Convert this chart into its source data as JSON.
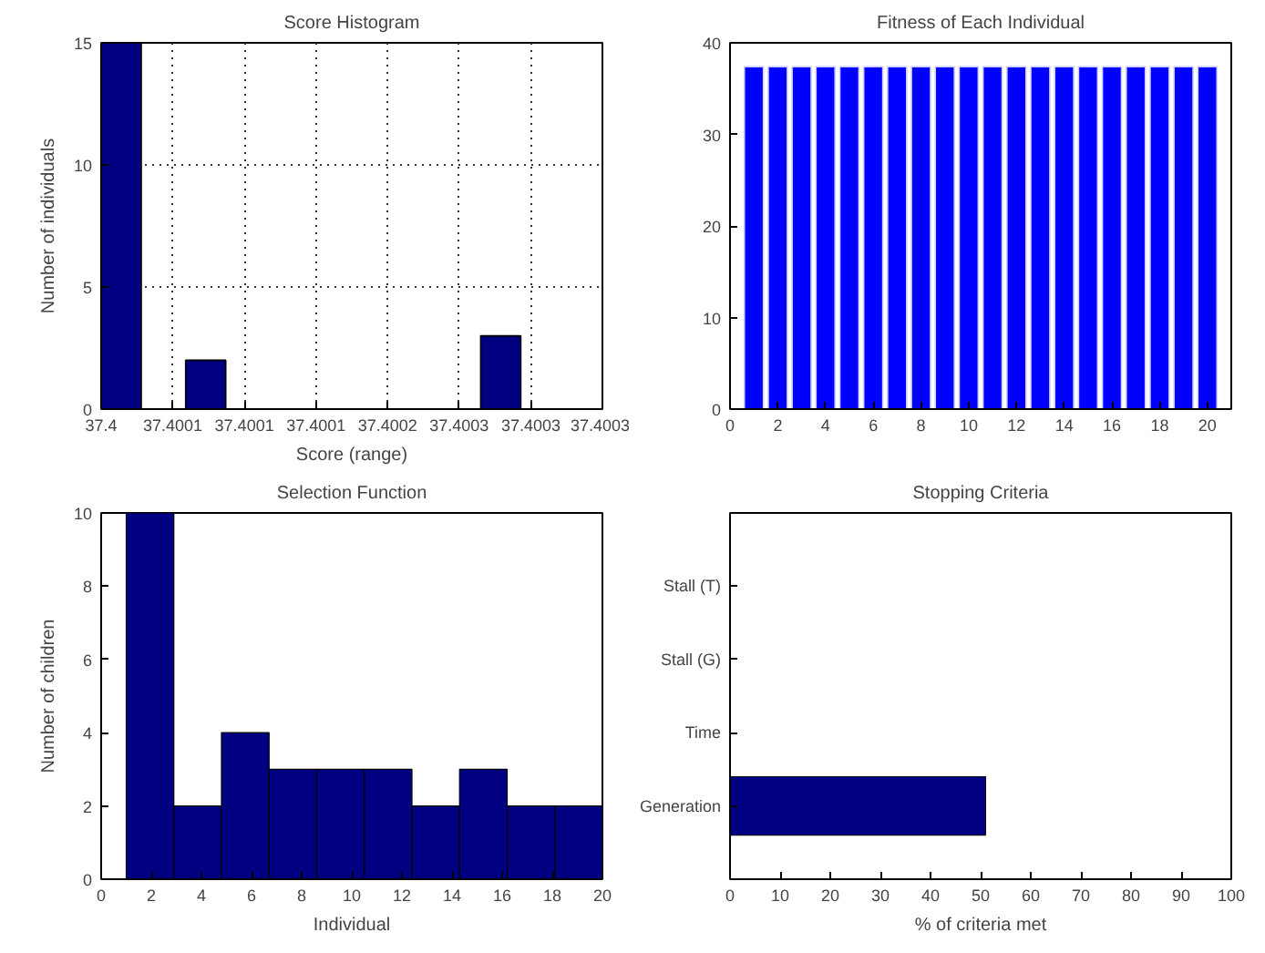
{
  "chart_data": [
    {
      "type": "bar",
      "title": "Score Histogram",
      "xlabel": "Score (range)",
      "ylabel": "Number of individuals",
      "x": [
        37.400014,
        37.400073,
        37.400279
      ],
      "values": [
        15,
        2,
        3
      ],
      "color": "#000080",
      "xlim": [
        37.4,
        37.40035
      ],
      "xticks": [
        37.4,
        {
          "value": 37.40005,
          "label": "37.4001"
        },
        {
          "value": 37.4001,
          "label": "37.4001"
        },
        {
          "value": 37.40015,
          "label": "37.4001"
        },
        {
          "value": 37.4002,
          "label": "37.4002"
        },
        {
          "value": 37.40025,
          "label": "37.4003"
        },
        {
          "value": 37.4003,
          "label": "37.4003"
        },
        {
          "value": 37.40035,
          "label": "37.4003"
        }
      ],
      "ylim": [
        0,
        15
      ],
      "yticks": [
        0,
        5,
        10,
        15
      ],
      "grid": true
    },
    {
      "type": "bar",
      "title": "Fitness of Each Individual",
      "x": [
        1,
        2,
        3,
        4,
        5,
        6,
        7,
        8,
        9,
        10,
        11,
        12,
        13,
        14,
        15,
        16,
        17,
        18,
        19,
        20
      ],
      "values": [
        37.4,
        37.4,
        37.4,
        37.4,
        37.4,
        37.4,
        37.4,
        37.4,
        37.4,
        37.4,
        37.4,
        37.4,
        37.4,
        37.4,
        37.4,
        37.4,
        37.4,
        37.4,
        37.4,
        37.4
      ],
      "color": "#0000ff",
      "xlim": [
        0,
        21
      ],
      "xticks": [
        0,
        2,
        4,
        6,
        8,
        10,
        12,
        14,
        16,
        18,
        20
      ],
      "ylim": [
        0,
        40
      ],
      "yticks": [
        0,
        10,
        20,
        30,
        40
      ]
    },
    {
      "type": "histogram",
      "title": "Selection Function",
      "xlabel": "Individual",
      "ylabel": "Number of children",
      "bins": [
        1,
        2.9,
        4.8,
        6.7,
        8.6,
        10.5,
        12.4,
        14.3,
        16.2,
        18.1,
        20
      ],
      "values": [
        10,
        2,
        4,
        3,
        3,
        3,
        2,
        3,
        2,
        2
      ],
      "color": "#000080",
      "xlim": [
        0,
        20
      ],
      "xticks": [
        0,
        2,
        4,
        6,
        8,
        10,
        12,
        14,
        16,
        18,
        20
      ],
      "ylim": [
        0,
        10
      ],
      "yticks": [
        0,
        2,
        4,
        6,
        8,
        10
      ]
    },
    {
      "type": "bar",
      "orientation": "horizontal",
      "title": "Stopping Criteria",
      "xlabel": "% of criteria met",
      "categories": [
        "Stall (T)",
        "Stall (G)",
        "Time",
        "Generation"
      ],
      "values": [
        0,
        0,
        0,
        51
      ],
      "color": "#000080",
      "xlim": [
        0,
        100
      ],
      "xticks": [
        0,
        10,
        20,
        30,
        40,
        50,
        60,
        70,
        80,
        90,
        100
      ]
    }
  ]
}
